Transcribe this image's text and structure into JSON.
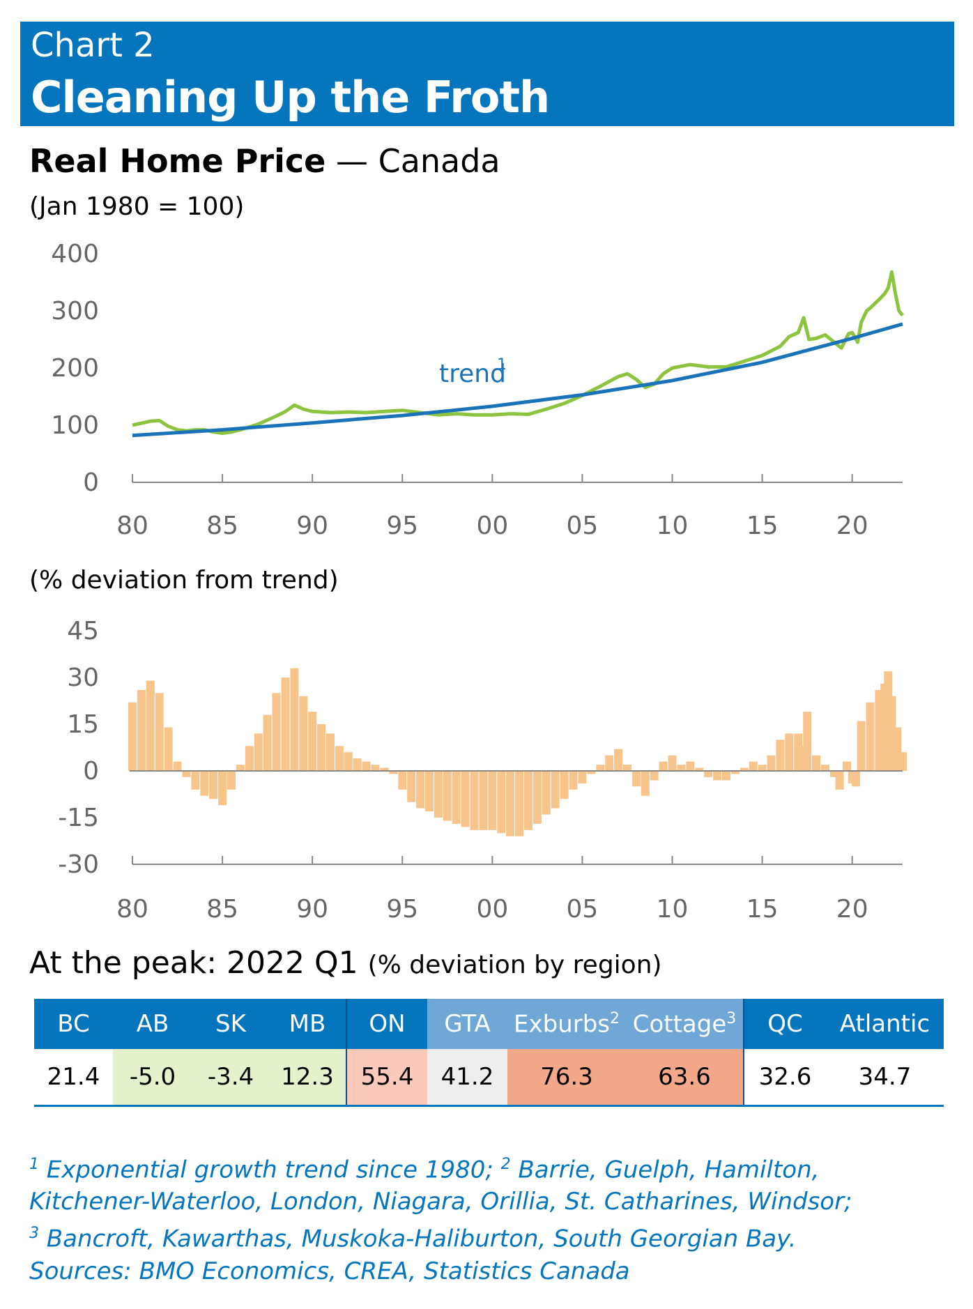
{
  "header": {
    "kicker": "Chart 2",
    "title": "Cleaning Up the Froth"
  },
  "top_panel": {
    "title_bold": "Real Home Price",
    "title_rest": " — Canada",
    "unit": "(Jan 1980 = 100)",
    "trend_label": "trend"
  },
  "bottom_panel": {
    "unit": "(% deviation from trend)"
  },
  "peak": {
    "title": "At the peak: 2022 Q1",
    "subtitle": "(% deviation by region)"
  },
  "table": {
    "headers": [
      "BC",
      "AB",
      "SK",
      "MB",
      "ON",
      "GTA",
      "Exburbs",
      "Cottage",
      "QC",
      "Atlantic"
    ],
    "header_sups": [
      "",
      "",
      "",
      "",
      "",
      "",
      "2",
      "3",
      "",
      ""
    ],
    "values": [
      "21.4",
      "-5.0",
      "-3.4",
      "12.3",
      "55.4",
      "41.2",
      "76.3",
      "63.6",
      "32.6",
      "34.7"
    ],
    "cell_colors": [
      "#ffffff",
      "#e3f2cb",
      "#e3f2cb",
      "#e3f2cb",
      "#f9c9b9",
      "#eeeeee",
      "#f4a88a",
      "#f4a88a",
      "#ffffff",
      "#ffffff"
    ]
  },
  "notes": {
    "line1_text": " Exponential growth trend since 1980; ",
    "line1_text2": " Barrie, Guelph, Hamilton,",
    "line2": "Kitchener-Waterloo, London, Niagara, Orillia, St. Catharines, Windsor;",
    "line3_text": " Bancroft, Kawarthas, Muskoka-Haliburton, South Georgian Bay.",
    "sources": "Sources: BMO Economics, CREA, Statistics Canada",
    "sup1": "1",
    "sup2": "2",
    "sup3": "3"
  },
  "colors": {
    "banner": "#0576bd",
    "price_line": "#8cc43f",
    "trend_line": "#1a73b8",
    "deviation_bars": "#f7c48c",
    "axis": "#888888"
  },
  "chart_data": [
    {
      "type": "line",
      "title": "Real Home Price — Canada",
      "ylabel": "(Jan 1980 = 100)",
      "xlim": [
        1980,
        2022.8
      ],
      "ylim": [
        0,
        400
      ],
      "yticks": [
        0,
        100,
        200,
        300,
        400
      ],
      "xticks": [
        1980,
        1985,
        1990,
        1995,
        2000,
        2005,
        2010,
        2015,
        2020
      ],
      "xtick_labels": [
        "80",
        "85",
        "90",
        "95",
        "00",
        "05",
        "10",
        "15",
        "20"
      ],
      "ytick_labels": [
        "0",
        "100",
        "200",
        "300",
        "400"
      ],
      "grid": false,
      "series": [
        {
          "name": "Real Home Price",
          "x": [
            1980,
            1981,
            1981.5,
            1982,
            1982.5,
            1983,
            1983.5,
            1984,
            1984.5,
            1985,
            1985.5,
            1986,
            1987,
            1988,
            1988.5,
            1989,
            1989.5,
            1990,
            1991,
            1992,
            1993,
            1994,
            1995,
            1996,
            1997,
            1998,
            1999,
            2000,
            2001,
            2002,
            2003,
            2004,
            2005,
            2006,
            2007,
            2007.5,
            2008,
            2008.5,
            2009,
            2009.5,
            2010,
            2011,
            2012,
            2013,
            2014,
            2015,
            2016,
            2016.5,
            2017,
            2017.3,
            2017.6,
            2018,
            2018.5,
            2019,
            2019.4,
            2019.8,
            2020,
            2020.3,
            2020.5,
            2020.8,
            2021,
            2021.5,
            2021.8,
            2022,
            2022.2,
            2022.4,
            2022.6,
            2022.8
          ],
          "y": [
            100,
            107,
            108,
            98,
            92,
            90,
            92,
            92,
            88,
            86,
            88,
            92,
            102,
            116,
            124,
            135,
            128,
            124,
            122,
            123,
            122,
            124,
            126,
            122,
            118,
            120,
            118,
            118,
            120,
            119,
            128,
            138,
            152,
            168,
            185,
            190,
            180,
            166,
            172,
            190,
            200,
            206,
            202,
            202,
            212,
            222,
            238,
            255,
            262,
            288,
            250,
            252,
            258,
            245,
            235,
            260,
            262,
            245,
            280,
            300,
            305,
            320,
            330,
            340,
            368,
            330,
            300,
            292
          ]
        },
        {
          "name": "trend",
          "x": [
            1980,
            1985,
            1990,
            1995,
            2000,
            2005,
            2010,
            2015,
            2020,
            2022.8
          ],
          "y": [
            82,
            92,
            104,
            117,
            133,
            153,
            178,
            210,
            252,
            277
          ]
        }
      ]
    },
    {
      "type": "bar",
      "ylabel": "(% deviation from trend)",
      "xlim": [
        1980,
        2022.8
      ],
      "ylim": [
        -30,
        45
      ],
      "yticks": [
        -30,
        -15,
        0,
        15,
        30,
        45
      ],
      "ytick_labels": [
        "-30",
        "-15",
        "0",
        "15",
        "30",
        "45"
      ],
      "xticks": [
        1980,
        1985,
        1990,
        1995,
        2000,
        2005,
        2010,
        2015,
        2020
      ],
      "xtick_labels": [
        "80",
        "85",
        "90",
        "95",
        "00",
        "05",
        "10",
        "15",
        "20"
      ],
      "grid": false,
      "series": [
        {
          "name": "% deviation from trend",
          "x": [
            1980,
            1980.5,
            1981,
            1981.5,
            1982,
            1982.5,
            1983,
            1983.5,
            1984,
            1984.5,
            1985,
            1985.5,
            1986,
            1986.5,
            1987,
            1987.5,
            1988,
            1988.5,
            1989,
            1989.5,
            1990,
            1990.5,
            1991,
            1991.5,
            1992,
            1992.5,
            1993,
            1993.5,
            1994,
            1994.5,
            1995,
            1995.5,
            1996,
            1996.5,
            1997,
            1997.5,
            1998,
            1998.5,
            1999,
            1999.5,
            2000,
            2000.5,
            2001,
            2001.5,
            2002,
            2002.5,
            2003,
            2003.5,
            2004,
            2004.5,
            2005,
            2005.5,
            2006,
            2006.5,
            2007,
            2007.5,
            2008,
            2008.5,
            2009,
            2009.5,
            2010,
            2010.5,
            2011,
            2011.5,
            2012,
            2012.5,
            2013,
            2013.5,
            2014,
            2014.5,
            2015,
            2015.5,
            2016,
            2016.5,
            2017,
            2017.2,
            2017.5,
            2018,
            2018.5,
            2019,
            2019.3,
            2019.7,
            2020,
            2020.2,
            2020.5,
            2021,
            2021.5,
            2021.8,
            2022,
            2022.2,
            2022.5,
            2022.8
          ],
          "y": [
            22,
            26,
            29,
            25,
            14,
            3,
            -2,
            -6,
            -8,
            -9,
            -11,
            -6,
            2,
            8,
            12,
            18,
            25,
            30,
            33,
            24,
            19,
            15,
            12,
            8,
            6,
            4,
            3,
            2,
            1,
            -1,
            -6,
            -10,
            -12,
            -13,
            -15,
            -16,
            -17,
            -18,
            -19,
            -19,
            -19,
            -20,
            -21,
            -21,
            -19,
            -17,
            -14,
            -12,
            -9,
            -6,
            -4,
            -1,
            2,
            5,
            7,
            2,
            -5,
            -8,
            -3,
            3,
            5,
            2,
            3,
            1,
            -2,
            -3,
            -3,
            -1,
            1,
            3,
            2,
            5,
            10,
            12,
            12,
            8,
            19,
            5,
            2,
            -2,
            -6,
            3,
            -4,
            -5,
            16,
            22,
            26,
            28,
            32,
            24,
            14,
            6
          ]
        }
      ]
    }
  ]
}
